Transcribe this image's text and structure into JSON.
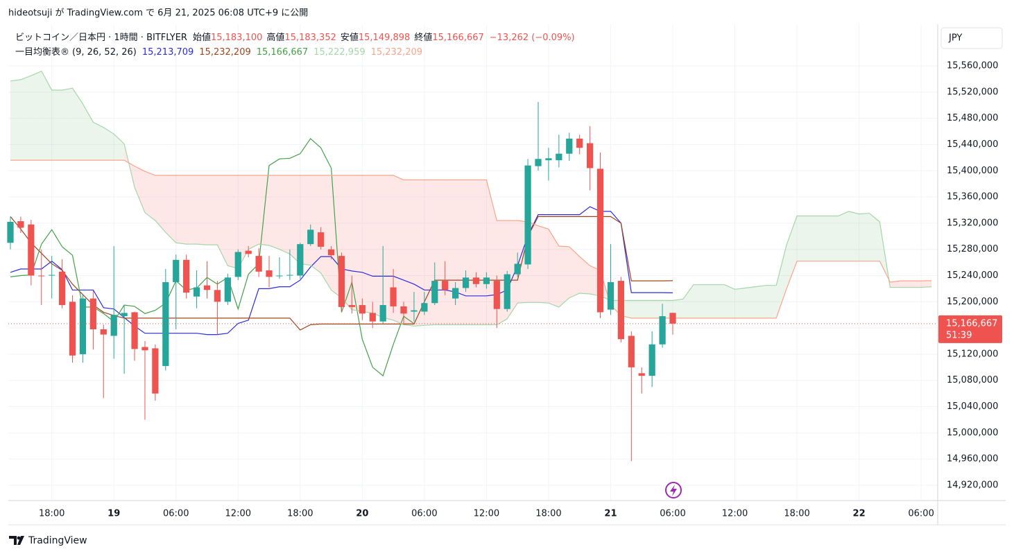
{
  "chart_data": {
    "type": "candlestick",
    "published": "hideotsuji が TradingView.com で 6月 21, 2025 06:08 UTC+9 に公開",
    "symbol": "ビットコイン／日本円 · 1時間 · BITFLYER",
    "ohlc_legend": [
      {
        "label": "始値",
        "value": "15,183,100"
      },
      {
        "label": "高値",
        "value": "15,183,352"
      },
      {
        "label": "安値",
        "value": "15,149,898"
      },
      {
        "label": "終値",
        "value": "15,166,667"
      }
    ],
    "change": "−13,262 (−0.09%)",
    "currency": "JPY",
    "brand": "TradingView",
    "up_color": "#26a69a",
    "down_color": "#ef5350",
    "grid": true,
    "xlim": [
      -0.2,
      89.6
    ],
    "xticks": [
      {
        "value": 4,
        "label": "18:00"
      },
      {
        "value": 10,
        "label": "19"
      },
      {
        "value": 16,
        "label": "06:00"
      },
      {
        "value": 22,
        "label": "12:00"
      },
      {
        "value": 28,
        "label": "18:00"
      },
      {
        "value": 34,
        "label": "20"
      },
      {
        "value": 40,
        "label": "06:00"
      },
      {
        "value": 46,
        "label": "12:00"
      },
      {
        "value": 52,
        "label": "18:00"
      },
      {
        "value": 58,
        "label": "21"
      },
      {
        "value": 64,
        "label": "06:00"
      },
      {
        "value": 70,
        "label": "12:00"
      },
      {
        "value": 76,
        "label": "18:00"
      },
      {
        "value": 82,
        "label": "22"
      },
      {
        "value": 88,
        "label": "06:00"
      }
    ],
    "ylim": [
      14896700,
      15623500
    ],
    "yticks": [
      {
        "value": 15560000,
        "label": "15,560,000"
      },
      {
        "value": 15520000,
        "label": "15,520,000"
      },
      {
        "value": 15480000,
        "label": "15,480,000"
      },
      {
        "value": 15440000,
        "label": "15,440,000"
      },
      {
        "value": 15400000,
        "label": "15,400,000"
      },
      {
        "value": 15360000,
        "label": "15,360,000"
      },
      {
        "value": 15320000,
        "label": "15,320,000"
      },
      {
        "value": 15280000,
        "label": "15,280,000"
      },
      {
        "value": 15240000,
        "label": "15,240,000"
      },
      {
        "value": 15200000,
        "label": "15,200,000"
      },
      {
        "value": 15160000,
        "label": "15,160,000"
      },
      {
        "value": 15120000,
        "label": "15,120,000"
      },
      {
        "value": 15080000,
        "label": "15,080,000"
      },
      {
        "value": 15040000,
        "label": "15,040,000"
      },
      {
        "value": 15000000,
        "label": "15,000,000"
      },
      {
        "value": 14960000,
        "label": "14,960,000"
      },
      {
        "value": 14920000,
        "label": "14,920,000"
      }
    ],
    "open": [
      15290000,
      15323000,
      15318000,
      15240000,
      15240000,
      15246000,
      15200000,
      15120000,
      15205000,
      15158000,
      15148000,
      15178000,
      15184000,
      15131000,
      15129000,
      15102000,
      15230000,
      15264000,
      15208000,
      15225000,
      15218000,
      15200000,
      15238000,
      15278000,
      15270000,
      15248000,
      15240000,
      15240000,
      15240000,
      15288000,
      15306000,
      15280000,
      15270000,
      15195000,
      15195000,
      15183000,
      15170000,
      15222000,
      15193000,
      15185000,
      15185000,
      15198000,
      15232000,
      15205000,
      15221000,
      15237000,
      15227000,
      15232000,
      15189000,
      15242000,
      15257000,
      15407000,
      15416000,
      15416000,
      15426000,
      15449000,
      15442000,
      15403000,
      15188000,
      15232000,
      15148000,
      15091000,
      15087000,
      15135000,
      15183100
    ],
    "high": [
      15330000,
      15330000,
      15325000,
      15280000,
      15270000,
      15265000,
      15210000,
      15212000,
      15217000,
      15165000,
      15285000,
      15195000,
      15185000,
      15140000,
      15135000,
      15250000,
      15272000,
      15272000,
      15248000,
      15262000,
      15232000,
      15243000,
      15280000,
      15285000,
      15282000,
      15270000,
      15268000,
      15280000,
      15290000,
      15318000,
      15314000,
      15285000,
      15275000,
      15240000,
      15205000,
      15200000,
      15285000,
      15250000,
      15200000,
      15215000,
      15215000,
      15260000,
      15262000,
      15230000,
      15248000,
      15245000,
      15245000,
      15240000,
      15247000,
      15275000,
      15418000,
      15505000,
      15435000,
      15455000,
      15458000,
      15455000,
      15468000,
      15428000,
      15288000,
      15238000,
      15155000,
      15100000,
      15155000,
      15197000,
      15183352
    ],
    "low": [
      15280000,
      15305000,
      15225000,
      15195000,
      15205000,
      15190000,
      15107000,
      15107000,
      15127000,
      15053000,
      15113000,
      15090000,
      15110000,
      15020000,
      15049000,
      15095000,
      15158000,
      15205000,
      15190000,
      15205000,
      15150000,
      15195000,
      15233000,
      15268000,
      15238000,
      15222000,
      15235000,
      15233000,
      15235000,
      15285000,
      15280000,
      15265000,
      15185000,
      15182000,
      15172000,
      15160000,
      15165000,
      15183000,
      15165000,
      15170000,
      15180000,
      15195000,
      15210000,
      15195000,
      15215000,
      15222000,
      15220000,
      15160000,
      15185000,
      15238000,
      15250000,
      15400000,
      15385000,
      15405000,
      15415000,
      15425000,
      15370000,
      15175000,
      15180000,
      15138000,
      14957000,
      15060000,
      15070000,
      15130000,
      15149898
    ],
    "close": [
      15322000,
      15313000,
      15240000,
      15239000,
      15241000,
      15195000,
      15118000,
      15205000,
      15158000,
      15150000,
      15180000,
      15183000,
      15128000,
      15126000,
      15060000,
      15230000,
      15264000,
      15214000,
      15222000,
      15218000,
      15200000,
      15237000,
      15276000,
      15273000,
      15246000,
      15238000,
      15240000,
      15241000,
      15288000,
      15310000,
      15284000,
      15271000,
      15192000,
      15192000,
      15182000,
      15170000,
      15195000,
      15193000,
      15182000,
      15187000,
      15198000,
      15232000,
      15218000,
      15221000,
      15237000,
      15227000,
      15237000,
      15189000,
      15242000,
      15258000,
      15408000,
      15418000,
      15419000,
      15426000,
      15449000,
      15435000,
      15404000,
      15184000,
      15230000,
      15143000,
      15100000,
      15087000,
      15135000,
      15178000,
      15166667
    ],
    "price_tag": {
      "value": 15166667,
      "label": "15,166,667",
      "countdown": "51:39"
    },
    "ichimoku": {
      "name": "一目均衡表®",
      "params": "(9, 26, 52, 26)",
      "lines": [
        {
          "color": "#2a2ae0",
          "label": "15,213,709",
          "values": [
            15245000,
            15250000,
            15250000,
            15250000,
            15262000,
            15249000,
            15218000,
            15218000,
            15218000,
            15191000,
            15189000,
            15176000,
            15163000,
            15152000,
            15152000,
            15152000,
            15152000,
            15152000,
            15152000,
            15150000,
            15150000,
            15152000,
            15167000,
            15172000,
            15220000,
            15220000,
            15223000,
            15223000,
            15233000,
            15253000,
            15269000,
            15269000,
            15250000,
            15247000,
            15245000,
            15239000,
            15239000,
            15239000,
            15233000,
            15227000,
            15218000,
            15218000,
            15218000,
            15215000,
            15209000,
            15209000,
            15209000,
            15211000,
            15218000,
            15255000,
            15301000,
            15333000,
            15333000,
            15333000,
            15333000,
            15333000,
            15345000,
            15338000,
            15338000,
            15320000,
            15214000,
            15214000,
            15214000,
            15214000,
            15213709,
            null,
            null,
            null,
            null,
            null,
            null,
            null,
            null,
            null,
            null,
            null,
            null,
            null,
            null,
            null,
            null,
            null,
            null,
            null,
            null,
            null,
            null,
            null,
            null,
            null
          ]
        },
        {
          "color": "#a0431c",
          "label": "15,232,209",
          "values": [
            15330000,
            15311000,
            15290000,
            15274000,
            15258000,
            15248000,
            15227000,
            15211000,
            15195000,
            15184000,
            15179000,
            15175000,
            15175000,
            15175000,
            15175000,
            15175000,
            15175000,
            15175000,
            15175000,
            15175000,
            15175000,
            15175000,
            15175000,
            15175000,
            15175000,
            15175000,
            15175000,
            15175000,
            15157000,
            15165000,
            15166000,
            15166000,
            15166000,
            15166000,
            15166000,
            15166000,
            15166000,
            15166000,
            15166000,
            15166000,
            15200000,
            15233000,
            15233000,
            15233000,
            15233000,
            15233000,
            15233000,
            15233000,
            15233000,
            15233000,
            15300000,
            15330000,
            15330000,
            15330000,
            15330000,
            15330000,
            15330000,
            15330000,
            15330000,
            15320000,
            15232000,
            15232000,
            15232000,
            15232000,
            15232209,
            null,
            null,
            null,
            null,
            null,
            null,
            null,
            null,
            null,
            null,
            null,
            null,
            null,
            null,
            null,
            null,
            null,
            null,
            null,
            null,
            null,
            null,
            null,
            null,
            null
          ]
        },
        {
          "color": "#43a047",
          "label": "15,166,667",
          "values": [
            15238000,
            15240000,
            15241000,
            15288000,
            15310000,
            15284000,
            15271000,
            15192000,
            15192000,
            15182000,
            15170000,
            15195000,
            15193000,
            15182000,
            15187000,
            15198000,
            15232000,
            15218000,
            15221000,
            15237000,
            15227000,
            15237000,
            15189000,
            15242000,
            15258000,
            15408000,
            15418000,
            15419000,
            15426000,
            15449000,
            15435000,
            15404000,
            15184000,
            15230000,
            15143000,
            15100000,
            15087000,
            15135000,
            15178000,
            15166667,
            null,
            null,
            null,
            null,
            null,
            null,
            null,
            null,
            null,
            null,
            null,
            null,
            null,
            null,
            null,
            null,
            null,
            null,
            null,
            null,
            null,
            null,
            null,
            null,
            null,
            null,
            null,
            null,
            null,
            null,
            null,
            null,
            null,
            null,
            null,
            null,
            null,
            null,
            null,
            null,
            null,
            null,
            null,
            null,
            null,
            null,
            null,
            null,
            null,
            null
          ]
        },
        {
          "color": "#a5d6a7",
          "label": "15,222,959",
          "values": [
            15537000,
            15539000,
            15545000,
            15552000,
            15523000,
            15523000,
            15526000,
            15502000,
            15474000,
            15466000,
            15456000,
            15441000,
            15375000,
            15336000,
            15324000,
            15306000,
            15290000,
            15288000,
            15288000,
            15287000,
            15287000,
            15255000,
            15251000,
            15280000,
            15288000,
            15286000,
            15280000,
            15273000,
            15258000,
            15256000,
            15244000,
            15218000,
            15206000,
            15188000,
            15185000,
            15183000,
            15176000,
            15172000,
            15165000,
            15163000,
            15164000,
            15165000,
            15165000,
            15165000,
            15165000,
            15165000,
            15165000,
            15165000,
            15174000,
            15198000,
            15199000,
            15199000,
            15198000,
            15192000,
            15206000,
            15213000,
            15212000,
            15209000,
            15202000,
            15202000,
            15202000,
            15202000,
            15202000,
            15202000,
            15202000,
            15204000,
            15226000,
            15226000,
            15226000,
            15226000,
            15219000,
            15221000,
            15223000,
            15225000,
            15225000,
            15287000,
            15331000,
            15331000,
            15331000,
            15331000,
            15331000,
            15338000,
            15334000,
            15335000,
            15322000,
            15222000,
            15222000,
            15222000,
            15222000,
            15222959
          ]
        },
        {
          "color": "#f7a58a",
          "label": "15,232,209",
          "values": [
            15416000,
            15416000,
            15416000,
            15416000,
            15416000,
            15416000,
            15416000,
            15416000,
            15416000,
            15416000,
            15416000,
            15416000,
            15407000,
            15399000,
            15393000,
            15393000,
            15393000,
            15393000,
            15393000,
            15393000,
            15393000,
            15393000,
            15393000,
            15393000,
            15393000,
            15393000,
            15393000,
            15393000,
            15393000,
            15393000,
            15393000,
            15393000,
            15393000,
            15393000,
            15393000,
            15393000,
            15393000,
            15393000,
            15386000,
            15386000,
            15386000,
            15386000,
            15386000,
            15386000,
            15386000,
            15386000,
            15386000,
            15324000,
            15324000,
            15324000,
            15322000,
            15316000,
            15311000,
            15285000,
            15284000,
            15269000,
            15255000,
            15248000,
            15195000,
            15179000,
            15175000,
            15175000,
            15175000,
            15175000,
            15175000,
            15175000,
            15175000,
            15175000,
            15175000,
            15175000,
            15175000,
            15175000,
            15175000,
            15175000,
            15175000,
            15220000,
            15262000,
            15262000,
            15262000,
            15262000,
            15262000,
            15262000,
            15262000,
            15262000,
            15262000,
            15230000,
            15232000,
            15232000,
            15232000,
            15232209
          ]
        }
      ]
    }
  }
}
